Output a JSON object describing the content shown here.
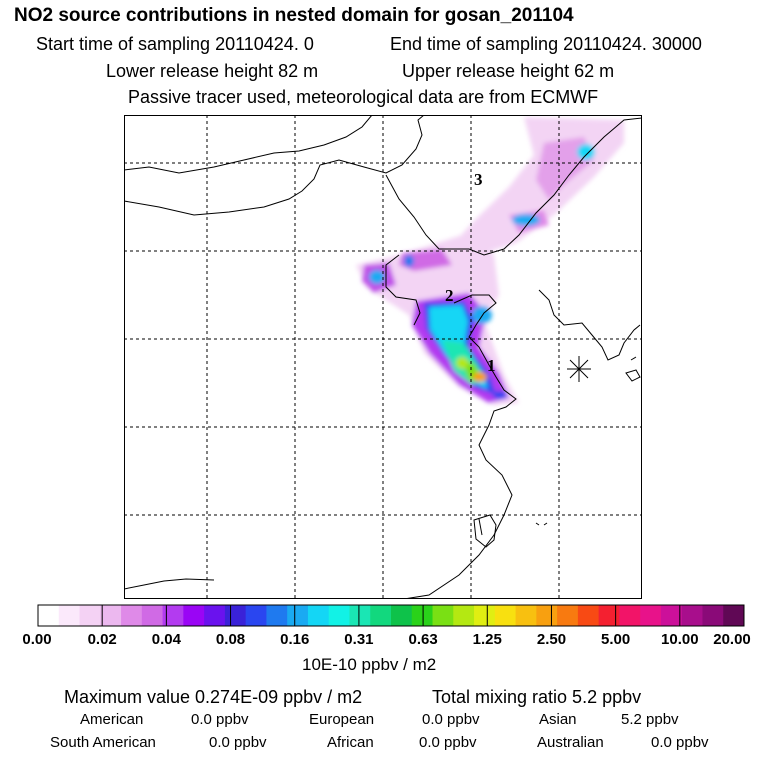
{
  "header": {
    "title": "NO2 source contributions in nested domain for gosan_201104",
    "start_time": "Start time of sampling 20110424.     0",
    "end_time": "End time of sampling 20110424. 30000",
    "lower_release": "Lower release height   82 m",
    "upper_release": "Upper release height   62 m",
    "tracer_note": "Passive tracer used, meteorological data are from ECMWF"
  },
  "map": {
    "source_labels": [
      "1",
      "2",
      "3"
    ],
    "receptor_marker": "station-star"
  },
  "colorbar": {
    "colors": [
      "#ffffff",
      "#fbe9fb",
      "#f4d2f4",
      "#ecb8ef",
      "#df8ae8",
      "#d06ae5",
      "#b33bf0",
      "#9a05f5",
      "#6a12ee",
      "#3a22d8",
      "#2a46f0",
      "#1f7aef",
      "#1aaaf2",
      "#14d6f5",
      "#12f2e6",
      "#1ae6b4",
      "#12d87e",
      "#0ec24a",
      "#2ad21a",
      "#7ae014",
      "#b4e812",
      "#e0ee12",
      "#f8e010",
      "#f8c010",
      "#f8a010",
      "#f87a10",
      "#f84a14",
      "#f42030",
      "#f21468",
      "#e8128a",
      "#cc109a",
      "#a80e8c",
      "#8a0a78",
      "#600855"
    ],
    "tick_labels": [
      "0.00",
      "0.02",
      "0.04",
      "0.08",
      "0.16",
      "0.31",
      "0.63",
      "1.25",
      "2.50",
      "5.00",
      "10.00",
      "20.00"
    ],
    "units": "10E-10 ppbv / m2"
  },
  "summary": {
    "max_value": "Maximum value  0.274E-09 ppbv / m2",
    "total": "Total mixing ratio        5.2 ppbv",
    "regions": [
      {
        "name": "American",
        "value": "0.0 ppbv"
      },
      {
        "name": "European",
        "value": "0.0 ppbv"
      },
      {
        "name": "Asian",
        "value": "5.2 ppbv"
      },
      {
        "name": "South American",
        "value": "0.0 ppbv"
      },
      {
        "name": "African",
        "value": "0.0 ppbv"
      },
      {
        "name": "Australian",
        "value": "0.0 ppbv"
      }
    ]
  }
}
